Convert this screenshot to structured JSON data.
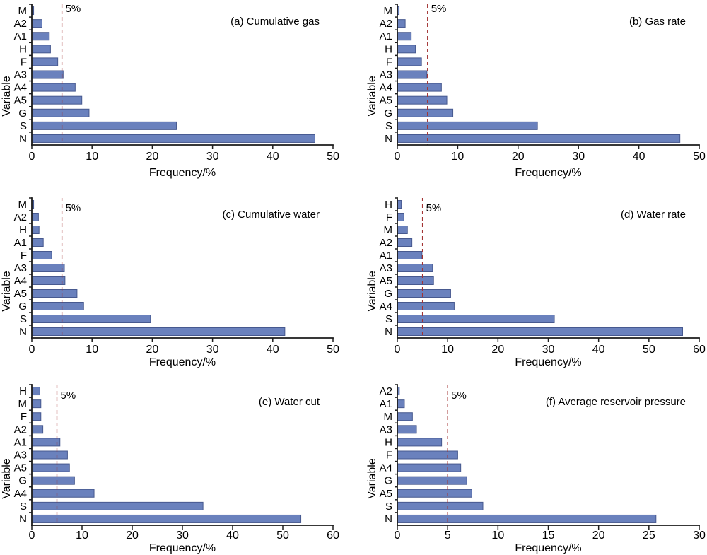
{
  "figure": {
    "background": "#ffffff"
  },
  "colors": {
    "bar_fill": "#6a81bd",
    "bar_stroke": "#47598f",
    "threshold": "#a33434",
    "axis": "#1c1c1c",
    "text": "#000000"
  },
  "chart_data": [
    {
      "id": "a",
      "type": "bar",
      "orientation": "horizontal",
      "title": "(a) Cumulative gas",
      "xlabel": "Frequency/%",
      "ylabel": "Variable",
      "grid": false,
      "legend": false,
      "categories": [
        "M",
        "A2",
        "A1",
        "H",
        "F",
        "A3",
        "A4",
        "A5",
        "G",
        "S",
        "N"
      ],
      "values": [
        0.3,
        1.7,
        2.9,
        3.1,
        4.3,
        5.2,
        7.2,
        8.3,
        9.5,
        24.0,
        47.0
      ],
      "xlim": [
        0,
        50
      ],
      "xticks": [
        0,
        10,
        20,
        30,
        40,
        50
      ],
      "threshold": {
        "value": 5,
        "label": "5%"
      }
    },
    {
      "id": "b",
      "type": "bar",
      "orientation": "horizontal",
      "title": "(b) Gas rate",
      "xlabel": "Frequency/%",
      "ylabel": "Variable",
      "grid": false,
      "legend": false,
      "categories": [
        "M",
        "A2",
        "A1",
        "H",
        "F",
        "A3",
        "A4",
        "A5",
        "G",
        "S",
        "N"
      ],
      "values": [
        0.3,
        1.3,
        2.3,
        3.0,
        4.0,
        4.9,
        7.3,
        8.2,
        9.2,
        23.2,
        46.8
      ],
      "xlim": [
        0,
        50
      ],
      "xticks": [
        0,
        10,
        20,
        30,
        40,
        50
      ],
      "threshold": {
        "value": 5,
        "label": "5%"
      }
    },
    {
      "id": "c",
      "type": "bar",
      "orientation": "horizontal",
      "title": "(c) Cumulative water",
      "xlabel": "Frequency/%",
      "ylabel": "Variable",
      "grid": false,
      "legend": false,
      "categories": [
        "M",
        "A2",
        "H",
        "A1",
        "F",
        "A3",
        "A4",
        "A5",
        "G",
        "S",
        "N"
      ],
      "values": [
        0.3,
        1.1,
        1.2,
        1.9,
        3.3,
        5.4,
        5.5,
        7.5,
        8.6,
        19.7,
        42.0
      ],
      "xlim": [
        0,
        50
      ],
      "xticks": [
        0,
        10,
        20,
        30,
        40,
        50
      ],
      "threshold": {
        "value": 5,
        "label": "5%"
      }
    },
    {
      "id": "d",
      "type": "bar",
      "orientation": "horizontal",
      "title": "(d) Water rate",
      "xlabel": "Frequency/%",
      "ylabel": "Variable",
      "grid": false,
      "legend": false,
      "categories": [
        "H",
        "F",
        "M",
        "A2",
        "A1",
        "A3",
        "A5",
        "G",
        "A4",
        "S",
        "N"
      ],
      "values": [
        0.8,
        1.3,
        2.0,
        2.9,
        4.9,
        7.0,
        7.2,
        10.6,
        11.3,
        31.2,
        56.7
      ],
      "xlim": [
        0,
        60
      ],
      "xticks": [
        0,
        10,
        20,
        30,
        40,
        50,
        60
      ],
      "threshold": {
        "value": 5,
        "label": "5%"
      }
    },
    {
      "id": "e",
      "type": "bar",
      "orientation": "horizontal",
      "title": "(e) Water cut",
      "xlabel": "Frequency/%",
      "ylabel": "Variable",
      "grid": false,
      "legend": false,
      "categories": [
        "H",
        "M",
        "F",
        "A2",
        "A1",
        "A3",
        "A5",
        "G",
        "A4",
        "S",
        "N"
      ],
      "values": [
        1.6,
        1.8,
        1.8,
        2.2,
        5.6,
        7.1,
        7.5,
        8.5,
        12.4,
        34.1,
        53.6
      ],
      "xlim": [
        0,
        60
      ],
      "xticks": [
        0,
        10,
        20,
        30,
        40,
        50,
        60
      ],
      "threshold": {
        "value": 5,
        "label": "5%"
      }
    },
    {
      "id": "f",
      "type": "bar",
      "orientation": "horizontal",
      "title": "(f) Average reservoir pressure",
      "xlabel": "Frequency/%",
      "ylabel": "Variable",
      "grid": false,
      "legend": false,
      "categories": [
        "A2",
        "A1",
        "M",
        "A3",
        "H",
        "F",
        "A4",
        "G",
        "A5",
        "S",
        "N"
      ],
      "values": [
        0.2,
        0.7,
        1.5,
        1.9,
        4.4,
        6.0,
        6.3,
        6.9,
        7.4,
        8.5,
        25.7
      ],
      "xlim": [
        0,
        30
      ],
      "xticks": [
        0,
        5,
        10,
        15,
        20,
        25,
        30
      ],
      "threshold": {
        "value": 5,
        "label": "5%"
      }
    }
  ]
}
